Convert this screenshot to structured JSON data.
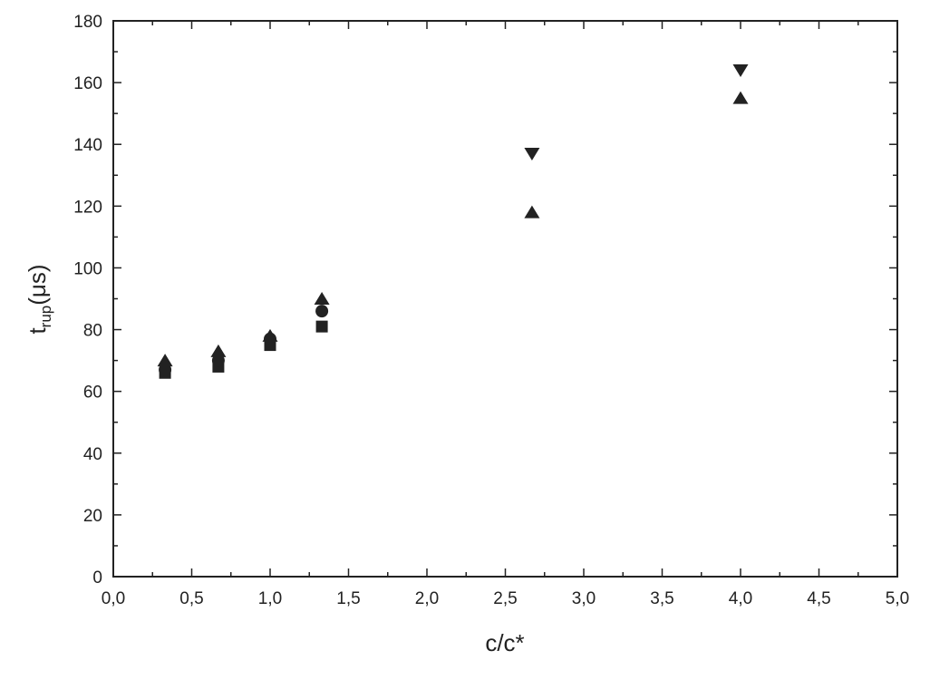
{
  "chart_data": {
    "type": "scatter",
    "xlabel": "c/c*",
    "ylabel": {
      "main": "t",
      "sub": "rup",
      "rest": "(μs)"
    },
    "xlim": [
      0,
      5
    ],
    "xticks": [
      {
        "value": 0,
        "label": "0,0"
      },
      {
        "value": 0.5,
        "label": "0,5"
      },
      {
        "value": 1,
        "label": "1,0"
      },
      {
        "value": 1.5,
        "label": "1,5"
      },
      {
        "value": 2,
        "label": "2,0"
      },
      {
        "value": 2.5,
        "label": "2,5"
      },
      {
        "value": 3,
        "label": "3,0"
      },
      {
        "value": 3.5,
        "label": "3,5"
      },
      {
        "value": 4,
        "label": "4,0"
      },
      {
        "value": 4.5,
        "label": "4,5"
      },
      {
        "value": 5,
        "label": "5,0"
      }
    ],
    "xminorticks": [
      0.25,
      0.75,
      1.25,
      1.75,
      2.25,
      2.75,
      3.25,
      3.75,
      4.25,
      4.75
    ],
    "ylim": [
      0,
      180
    ],
    "yticks": [
      0,
      20,
      40,
      60,
      80,
      100,
      120,
      140,
      160,
      180
    ],
    "yminorticks": [
      10,
      30,
      50,
      70,
      90,
      110,
      130,
      150,
      170
    ],
    "series": [
      {
        "marker": "square",
        "color": "#222222",
        "x": [
          0.33,
          0.67,
          1.0,
          1.33
        ],
        "values": [
          66,
          68,
          75,
          81
        ]
      },
      {
        "marker": "circle",
        "color": "#222222",
        "x": [
          0.33,
          0.67,
          1.0,
          1.33
        ],
        "values": [
          67,
          70,
          77,
          86
        ]
      },
      {
        "marker": "triangle-up",
        "color": "#222222",
        "x": [
          0.33,
          0.67,
          1.0,
          1.33,
          2.67,
          4.0
        ],
        "values": [
          70,
          73,
          78,
          90,
          118,
          155
        ]
      },
      {
        "marker": "triangle-down",
        "color": "#222222",
        "x": [
          2.67,
          4.0
        ],
        "values": [
          137,
          164
        ]
      }
    ]
  }
}
